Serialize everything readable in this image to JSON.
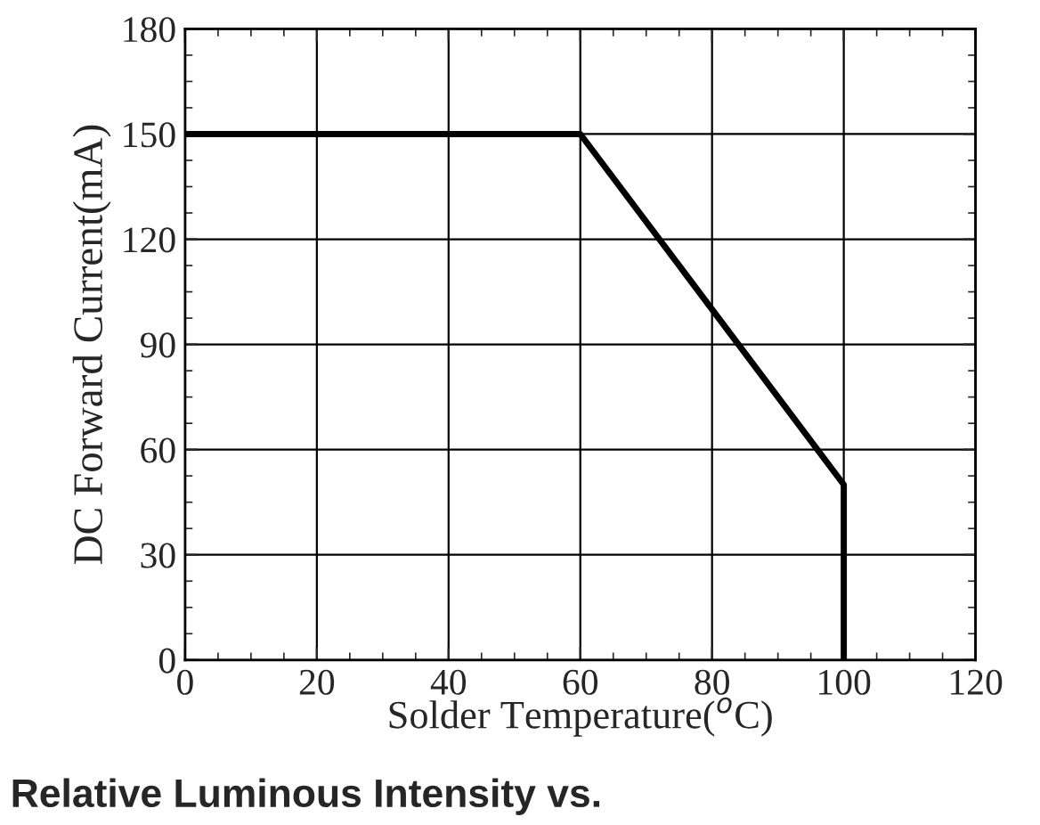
{
  "chart_data": {
    "type": "line",
    "xlabel": "Solder Temperature($^{o}$C)",
    "ylabel": "DC Forward Current(mA)",
    "x": [
      0,
      60,
      100,
      100
    ],
    "series": [
      {
        "color": "#000000",
        "values": [
          150,
          150,
          50,
          0
        ]
      }
    ],
    "xlim": [
      0,
      120
    ],
    "xticks": [
      0,
      20,
      40,
      60,
      80,
      100,
      120
    ],
    "ylim": [
      0,
      180
    ],
    "yticks": [
      0,
      30,
      60,
      90,
      120,
      150,
      180
    ],
    "grid": true,
    "marker": "none",
    "line_style": "solid",
    "annotations": [
      "Relative Luminous Intensity vs."
    ]
  }
}
